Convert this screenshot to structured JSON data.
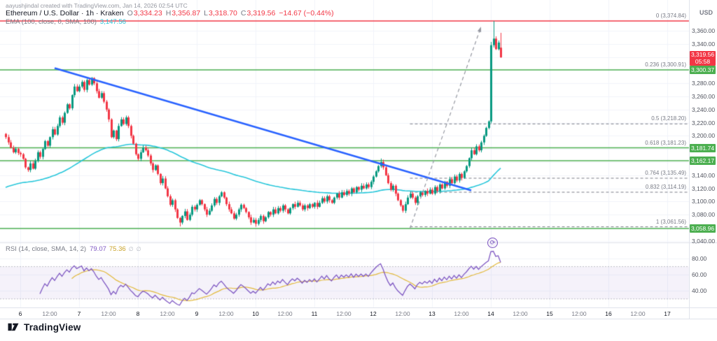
{
  "watermark": "aayushjindal created with TradingView.com, Jan 14, 2026 02:54 UTC",
  "branding": {
    "logo_text": "TradingView"
  },
  "icons": {
    "cycle": "⟳",
    "empty_set": "∅"
  },
  "legend": {
    "symbol": "Ethereum / U.S. Dollar · 1h · Kraken",
    "ohlc": [
      {
        "k": "O",
        "v": "3,334.23"
      },
      {
        "k": "H",
        "v": "3,356.87"
      },
      {
        "k": "L",
        "v": "3,318.70"
      },
      {
        "k": "C",
        "v": "3,319.56"
      }
    ],
    "change": "−14.67 (−0.44%)",
    "ema_label": "EMA (100, close, 0, SMA, 100)",
    "ema_value": "3,147.56"
  },
  "rsi_legend": {
    "label": "RSI (14, close, SMA, 14, 2)",
    "value": "79.07",
    "ma_value": "75.36"
  },
  "price_axis": {
    "currency": "USD",
    "current_badge": {
      "price": "3,319.56",
      "countdown": "05:58",
      "value": 3319.56,
      "color": "#f23645"
    },
    "level_badges": [
      {
        "text": "3,300.37",
        "value": 3300.37
      },
      {
        "text": "3,181.74",
        "value": 3181.74
      },
      {
        "text": "3,162.17",
        "value": 3162.17
      },
      {
        "text": "3,058.96",
        "value": 3058.96
      }
    ],
    "badge_color": "#4caf50"
  },
  "chart_data": {
    "type": "candlestick",
    "title": "Ethereum / U.S. Dollar · 1h · Kraken",
    "symbol": "ETH/USD",
    "interval": "1h",
    "exchange": "Kraken",
    "y_axis": {
      "range": [
        3030,
        3390
      ],
      "ticks": [
        {
          "text": "3,360.00",
          "value": 3360
        },
        {
          "text": "3,340.00",
          "value": 3340
        },
        {
          "text": "3,280.00",
          "value": 3280
        },
        {
          "text": "3,260.00",
          "value": 3260
        },
        {
          "text": "3,240.00",
          "value": 3240
        },
        {
          "text": "3,220.00",
          "value": 3220
        },
        {
          "text": "3,200.00",
          "value": 3200
        },
        {
          "text": "3,140.00",
          "value": 3140
        },
        {
          "text": "3,120.00",
          "value": 3120
        },
        {
          "text": "3,100.00",
          "value": 3100
        },
        {
          "text": "3,080.00",
          "value": 3080
        },
        {
          "text": "3,040.00",
          "value": 3040
        }
      ]
    },
    "x_axis": {
      "labels": [
        "6",
        "12:00",
        "7",
        "12:00",
        "8",
        "12:00",
        "9",
        "12:00",
        "10",
        "12:00",
        "11",
        "12:00",
        "12",
        "12:00",
        "13",
        "12:00",
        "14",
        "12:00",
        "15",
        "12:00",
        "16",
        "12:00",
        "17"
      ],
      "first_index": 6,
      "step": 12
    },
    "closes": [
      3198,
      3190,
      3182,
      3175,
      3180,
      3174,
      3172,
      3165,
      3152,
      3148,
      3158,
      3150,
      3162,
      3175,
      3168,
      3180,
      3192,
      3185,
      3198,
      3210,
      3202,
      3215,
      3228,
      3220,
      3235,
      3248,
      3242,
      3262,
      3275,
      3268,
      3275,
      3282,
      3270,
      3285,
      3278,
      3288,
      3280,
      3268,
      3258,
      3265,
      3252,
      3240,
      3225,
      3198,
      3208,
      3195,
      3215,
      3225,
      3218,
      3228,
      3215,
      3200,
      3188,
      3172,
      3165,
      3175,
      3182,
      3178,
      3170,
      3158,
      3148,
      3155,
      3142,
      3128,
      3135,
      3120,
      3108,
      3095,
      3102,
      3088,
      3075,
      3068,
      3078,
      3085,
      3072,
      3080,
      3092,
      3088,
      3095,
      3102,
      3096,
      3088,
      3080,
      3086,
      3094,
      3104,
      3098,
      3108,
      3114,
      3106,
      3096,
      3088,
      3082,
      3074,
      3080,
      3088,
      3095,
      3090,
      3084,
      3076,
      3068,
      3072,
      3066,
      3072,
      3078,
      3070,
      3076,
      3084,
      3080,
      3088,
      3082,
      3090,
      3086,
      3094,
      3088,
      3082,
      3090,
      3096,
      3092,
      3098,
      3094,
      3088,
      3094,
      3090,
      3096,
      3092,
      3098,
      3092,
      3098,
      3105,
      3100,
      3108,
      3102,
      3098,
      3106,
      3112,
      3106,
      3114,
      3110,
      3116,
      3112,
      3120,
      3114,
      3122,
      3118,
      3124,
      3120,
      3126,
      3122,
      3130,
      3138,
      3146,
      3154,
      3160,
      3152,
      3140,
      3128,
      3118,
      3124,
      3112,
      3102,
      3094,
      3086,
      3096,
      3106,
      3112,
      3106,
      3098,
      3108,
      3114,
      3110,
      3116,
      3112,
      3118,
      3112,
      3122,
      3116,
      3126,
      3120,
      3130,
      3124,
      3134,
      3128,
      3138,
      3132,
      3142,
      3136,
      3146,
      3154,
      3166,
      3178,
      3172,
      3184,
      3178,
      3190,
      3200,
      3212,
      3222,
      3338,
      3348,
      3332,
      3342,
      3319.56
    ],
    "candle_overrides": {
      "71": {
        "l": 3062.0
      },
      "102": {
        "l": 3061.56
      },
      "153": {
        "h": 3165.5
      },
      "198": {
        "l": 3219.0,
        "h": 3343.0
      },
      "199": {
        "h": 3374.84
      },
      "202": {
        "o": 3334.23,
        "h": 3356.87,
        "l": 3318.7,
        "c": 3319.56
      }
    },
    "last_ohlc": {
      "o": 3334.23,
      "h": 3356.87,
      "l": 3318.7,
      "c": 3319.56
    },
    "levels": {
      "resistance": {
        "value": 3374.84,
        "color": "#f23645"
      },
      "support": [
        {
          "value": 3300.37
        },
        {
          "value": 3181.74
        },
        {
          "value": 3162.17
        },
        {
          "value": 3058.96
        }
      ],
      "support_color": "#4caf50"
    },
    "fib_labels": [
      {
        "text": "0 (3,374.84)",
        "value": 3374.84
      },
      {
        "text": "0.236 (3,300.91)",
        "value": 3300.91
      },
      {
        "text": "0.5 (3,218.20)",
        "value": 3218.2
      },
      {
        "text": "0.618 (3,181.23)",
        "value": 3181.23
      },
      {
        "text": "0.764 (3,135.49)",
        "value": 3135.49
      },
      {
        "text": "0.832 (3,114.19)",
        "value": 3114.19
      },
      {
        "text": "1 (3,061.56)",
        "value": 3061.56
      }
    ],
    "fib_dashed_values": [
      3218.2,
      3135.49,
      3114.19,
      3061.56
    ],
    "trendline": {
      "from": {
        "index": 20,
        "price": 3303
      },
      "to": {
        "index": 190,
        "price": 3117
      },
      "color": "#2962ff"
    },
    "projection_arrow": {
      "from": {
        "index": 165,
        "price": 3059
      },
      "to": {
        "index": 194,
        "price": 3366
      },
      "color": "#9598a1"
    },
    "ema": {
      "period": 100,
      "current": 3147.56,
      "color": "#26c6da"
    },
    "rsi": {
      "period": 14,
      "current": 79.07,
      "ma_period": 14,
      "ma_current": 75.36,
      "overbought": 70,
      "oversold": 30,
      "axis_ticks": [
        {
          "text": "80.00",
          "value": 80
        },
        {
          "text": "60.00",
          "value": 60
        },
        {
          "text": "40.00",
          "value": 40
        }
      ],
      "colors": {
        "line": "#7e57c2",
        "ma": "#e2b93b",
        "band": "rgba(126,87,194,0.08)"
      }
    },
    "colors": {
      "up": "#089981",
      "down": "#f23645",
      "grid": "#f0f3fa",
      "dashed": "#787b86"
    }
  }
}
